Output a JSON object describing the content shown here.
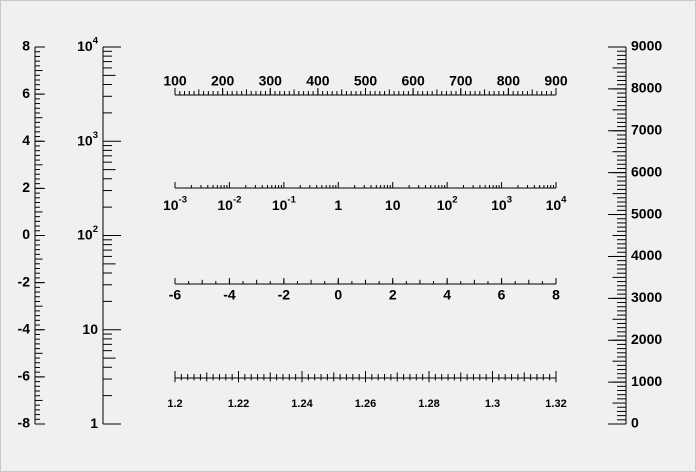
{
  "chart_data": [
    {
      "type": "axis",
      "orientation": "vertical",
      "scale": "linear",
      "range": [
        -8,
        8
      ],
      "major_ticks": [
        -8,
        -6,
        -4,
        -2,
        0,
        2,
        4,
        6,
        8
      ],
      "tick_labels": [
        "-8",
        "-6",
        "-4",
        "-2",
        "0",
        "2",
        "4",
        "6",
        "8"
      ],
      "minor_divisions": 10,
      "label_side": "left"
    },
    {
      "type": "axis",
      "orientation": "vertical",
      "scale": "log",
      "range": [
        1,
        10000
      ],
      "major_ticks": [
        1,
        10,
        100,
        1000,
        10000
      ],
      "tick_labels": [
        {
          "base": "1",
          "exp": ""
        },
        {
          "base": "10",
          "exp": ""
        },
        {
          "base": "10",
          "exp": "2"
        },
        {
          "base": "10",
          "exp": "3"
        },
        {
          "base": "10",
          "exp": "4"
        }
      ],
      "label_side": "left"
    },
    {
      "type": "axis",
      "orientation": "horizontal",
      "scale": "linear",
      "range": [
        100,
        900
      ],
      "major_ticks": [
        100,
        200,
        300,
        400,
        500,
        600,
        700,
        800,
        900
      ],
      "tick_labels": [
        "100",
        "200",
        "300",
        "400",
        "500",
        "600",
        "700",
        "800",
        "900"
      ],
      "minor_divisions": 10,
      "tick_direction": "up",
      "label_side": "top"
    },
    {
      "type": "axis",
      "orientation": "horizontal",
      "scale": "log",
      "range": [
        0.001,
        10000
      ],
      "major_ticks": [
        0.001,
        0.01,
        0.1,
        1,
        10,
        100,
        1000,
        10000
      ],
      "tick_labels": [
        {
          "base": "10",
          "exp": "-3"
        },
        {
          "base": "10",
          "exp": "-2"
        },
        {
          "base": "10",
          "exp": "-1"
        },
        {
          "base": "1",
          "exp": ""
        },
        {
          "base": "10",
          "exp": ""
        },
        {
          "base": "10",
          "exp": "2"
        },
        {
          "base": "10",
          "exp": "3"
        },
        {
          "base": "10",
          "exp": "4"
        }
      ],
      "tick_direction": "up",
      "label_side": "bottom"
    },
    {
      "type": "axis",
      "orientation": "horizontal",
      "scale": "linear",
      "range": [
        -6,
        8
      ],
      "major_ticks": [
        -6,
        -4,
        -2,
        0,
        2,
        4,
        6,
        8
      ],
      "tick_labels": [
        "-6",
        "-4",
        "-2",
        "0",
        "2",
        "4",
        "6",
        "8"
      ],
      "minor_divisions": 4,
      "tick_direction": "up",
      "label_side": "bottom"
    },
    {
      "type": "axis",
      "orientation": "horizontal",
      "scale": "linear",
      "range": [
        1.2,
        1.32
      ],
      "major_ticks": [
        1.2,
        1.22,
        1.24,
        1.26,
        1.28,
        1.3,
        1.32
      ],
      "tick_labels": [
        "1.2",
        "1.22",
        "1.24",
        "1.26",
        "1.28",
        "1.3",
        "1.32"
      ],
      "minor_divisions": 10,
      "tick_direction": "both",
      "label_side": "bottom"
    },
    {
      "type": "axis",
      "orientation": "vertical",
      "scale": "linear",
      "range": [
        0,
        9000
      ],
      "major_ticks": [
        0,
        1000,
        2000,
        3000,
        4000,
        5000,
        6000,
        7000,
        8000,
        9000
      ],
      "tick_labels": [
        "0",
        "1000",
        "2000",
        "3000",
        "4000",
        "5000",
        "6000",
        "7000",
        "8000",
        "9000"
      ],
      "minor_divisions": 10,
      "label_side": "right"
    }
  ],
  "colors": {
    "background": "#f0f0f0",
    "axis": "#000000",
    "border": "#c8c8c8"
  }
}
